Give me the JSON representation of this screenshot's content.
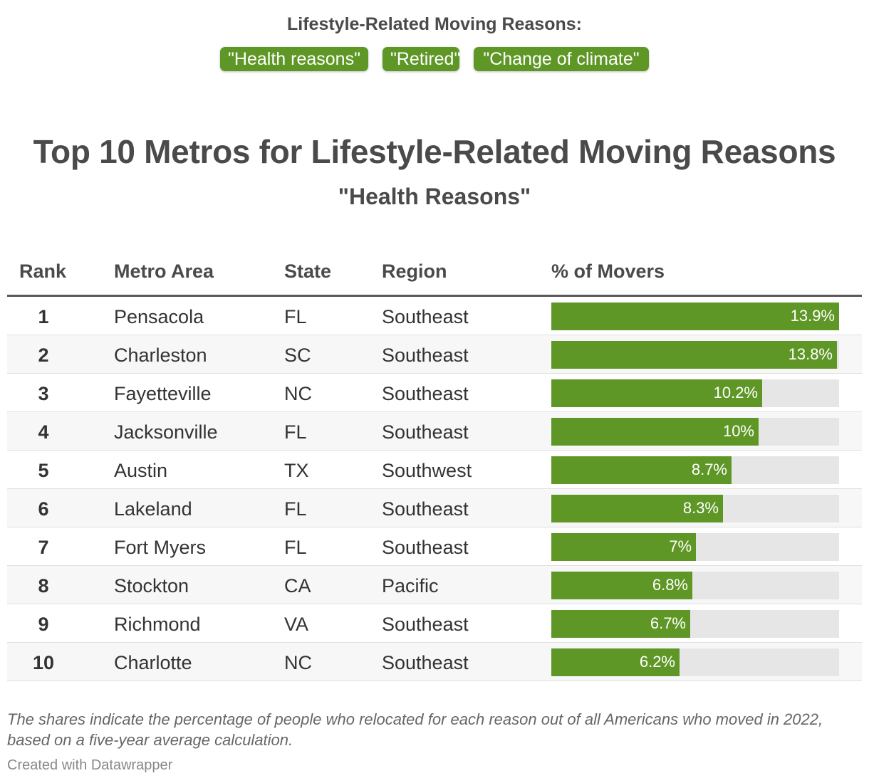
{
  "filter": {
    "heading": "Lifestyle-Related Moving Reasons:",
    "options": [
      "\"Health reasons\"",
      "\"Retired\"",
      "\"Change of climate\""
    ]
  },
  "title": "Top 10 Metros for Lifestyle-Related Moving Reasons",
  "subtitle": "\"Health Reasons\"",
  "columns": {
    "rank": "Rank",
    "metro": "Metro Area",
    "state": "State",
    "region": "Region",
    "pct": "% of Movers"
  },
  "colors": {
    "bar": "#5f9726",
    "track": "#e6e6e6"
  },
  "chart_data": {
    "type": "table",
    "title": "Top 10 Metros for Lifestyle-Related Moving Reasons",
    "subtitle": "\"Health Reasons\"",
    "bar_max": 13.9,
    "rows": [
      {
        "rank": "1",
        "metro": "Pensacola",
        "state": "FL",
        "region": "Southeast",
        "value": 13.9,
        "label": "13.9%"
      },
      {
        "rank": "2",
        "metro": "Charleston",
        "state": "SC",
        "region": "Southeast",
        "value": 13.8,
        "label": "13.8%"
      },
      {
        "rank": "3",
        "metro": "Fayetteville",
        "state": "NC",
        "region": "Southeast",
        "value": 10.2,
        "label": "10.2%"
      },
      {
        "rank": "4",
        "metro": "Jacksonville",
        "state": "FL",
        "region": "Southeast",
        "value": 10.0,
        "label": "10%"
      },
      {
        "rank": "5",
        "metro": "Austin",
        "state": "TX",
        "region": "Southwest",
        "value": 8.7,
        "label": "8.7%"
      },
      {
        "rank": "6",
        "metro": "Lakeland",
        "state": "FL",
        "region": "Southeast",
        "value": 8.3,
        "label": "8.3%"
      },
      {
        "rank": "7",
        "metro": "Fort Myers",
        "state": "FL",
        "region": "Southeast",
        "value": 7.0,
        "label": "7%"
      },
      {
        "rank": "8",
        "metro": "Stockton",
        "state": "CA",
        "region": "Pacific",
        "value": 6.8,
        "label": "6.8%"
      },
      {
        "rank": "9",
        "metro": "Richmond",
        "state": "VA",
        "region": "Southeast",
        "value": 6.7,
        "label": "6.7%"
      },
      {
        "rank": "10",
        "metro": "Charlotte",
        "state": "NC",
        "region": "Southeast",
        "value": 6.2,
        "label": "6.2%"
      }
    ]
  },
  "note": "The shares indicate the percentage of people who relocated for each reason out of all Americans who moved in 2022, based on a five-year average calculation.",
  "credit": "Created with Datawrapper"
}
